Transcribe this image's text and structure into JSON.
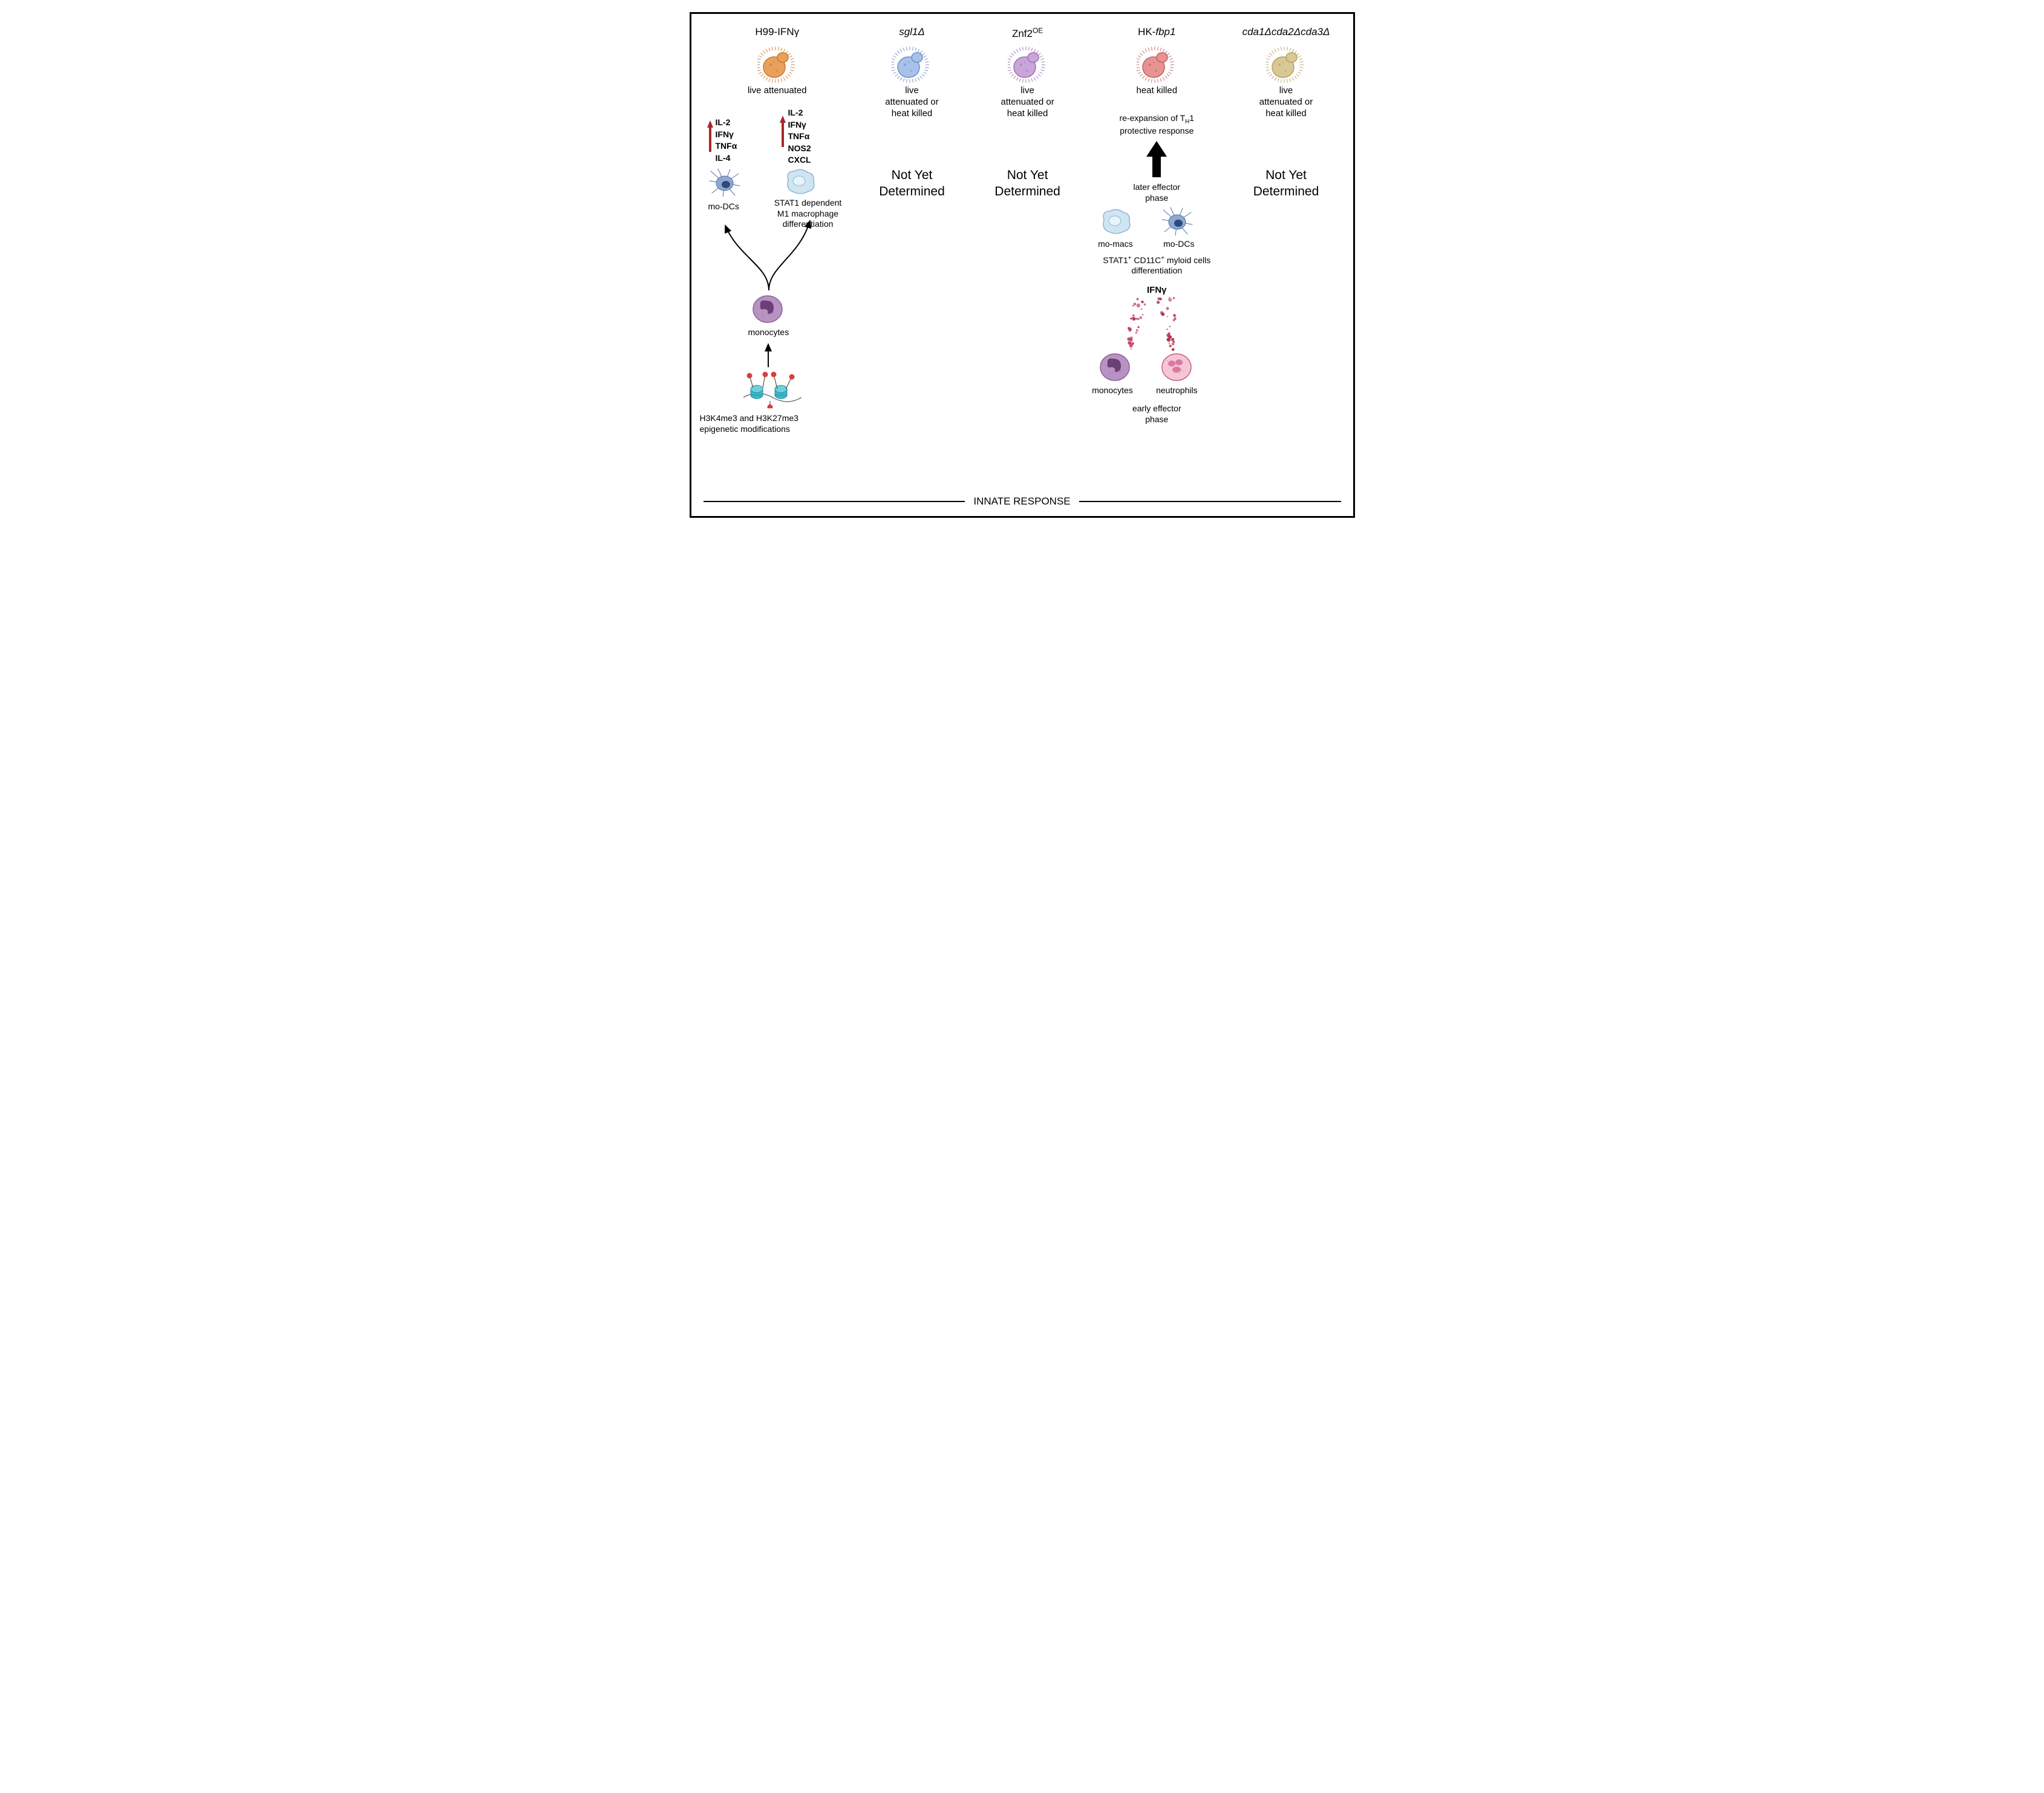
{
  "columns": [
    {
      "header_html": "H99-IFNγ",
      "header_italic": false,
      "state": "live\nattenuated",
      "color_body": "#e8a05a",
      "color_stroke": "#c97a2e",
      "nyd": false
    },
    {
      "header_html": "sgl1Δ",
      "header_italic": true,
      "state": "live\nattenuated or\nheat killed",
      "color_body": "#a9c1e8",
      "color_stroke": "#6b8fca",
      "nyd": true
    },
    {
      "header_html": "Znf2<sup>OE</sup>",
      "header_italic": false,
      "state": "live\nattenuated or\nheat killed",
      "color_body": "#c9a6d8",
      "color_stroke": "#9c6fb8",
      "nyd": true
    },
    {
      "header_html": "HK-<i>fbp1</i>",
      "header_italic": false,
      "state": "heat killed",
      "color_body": "#e59393",
      "color_stroke": "#c95d5d",
      "nyd": false
    },
    {
      "header_html": "cda1Δcda2Δcda3Δ",
      "header_italic": true,
      "state": "live\nattenuated or\nheat killed",
      "color_body": "#d8c896",
      "color_stroke": "#b89f5e",
      "nyd": true
    }
  ],
  "nyd_text": "Not Yet\nDetermined",
  "bottom_label": "INNATE RESPONSE",
  "col1": {
    "cytokines_left": "IL-2\nIFNγ\nTNFα\nIL-4",
    "cytokines_right": "IL-2\nIFNγ\nTNFα\nNOS2\nCXCL",
    "modc_label": "mo-DCs",
    "mac_label": "STAT1 dependent\nM1 macrophage\ndifferentiation",
    "mono_label": "monocytes",
    "epi_label": "H3K4me3 and H3K27me3\nepigenetic modifications",
    "arrow_color": "#a5282a",
    "modc_body": "#8fa8d1",
    "modc_nucleus": "#2e4a7a",
    "mac_body": "#cfe5f2",
    "mac_stroke": "#8fb5d3",
    "mono_body": "#b892c2",
    "mono_nucleus": "#6a4176",
    "histone_body": "#3ab6c9",
    "histone_dot": "#d6403a"
  },
  "col4": {
    "reexp": "re-expansion of T<sub>H</sub>1\nprotective response",
    "later_phase": "later effector\nphase",
    "momacs": "mo-macs",
    "modcs": "mo-DCs",
    "stat1": "STAT1<sup>+</sup> CD11C<sup>+</sup> myloid cells\ndifferentiation",
    "ifny": "IFNγ",
    "mono_label": "monocytes",
    "neut_label": "neutrophils",
    "early_phase": "early effector\nphase",
    "mono_body": "#b892c2",
    "mono_nucleus": "#6a4176",
    "neut_body": "#f5c6d4",
    "neut_nucleus": "#d97aa3",
    "neut_stroke": "#c46086",
    "dot_color": "#b0284a",
    "mac_body": "#cfe5f2",
    "mac_stroke": "#8fb5d3",
    "modc_body": "#8fa8d1",
    "modc_nucleus": "#2e4a7a"
  }
}
